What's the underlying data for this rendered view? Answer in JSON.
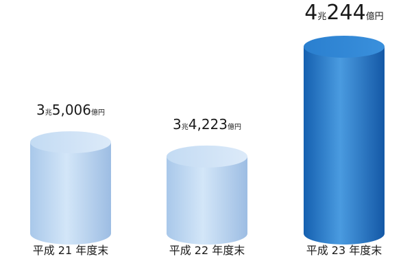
{
  "chart_data": {
    "type": "bar",
    "title": "",
    "xlabel": "",
    "ylabel": "",
    "categories": [
      "平成 21 年度末",
      "平成 22 年度末",
      "平成 23 年度末"
    ],
    "values": [
      35006,
      34223,
      40244
    ],
    "value_unit_text": "億円",
    "data_labels": [
      {
        "cho": "3",
        "cho_unit": "兆",
        "oku": "5,006",
        "oku_unit": "億円"
      },
      {
        "cho": "3",
        "cho_unit": "兆",
        "oku": "4,223",
        "oku_unit": "億円"
      },
      {
        "cho": "4",
        "cho_unit": "兆",
        "oku": "244",
        "oku_unit": "億円"
      }
    ],
    "highlight_index": 2,
    "colors": {
      "light_bar": "#b8d4f0",
      "light_bar_top": "#cfe2f6",
      "dark_bar": "#1f6fc0",
      "dark_bar_top": "#2f8ad6",
      "text": "#1a1a1a"
    }
  }
}
